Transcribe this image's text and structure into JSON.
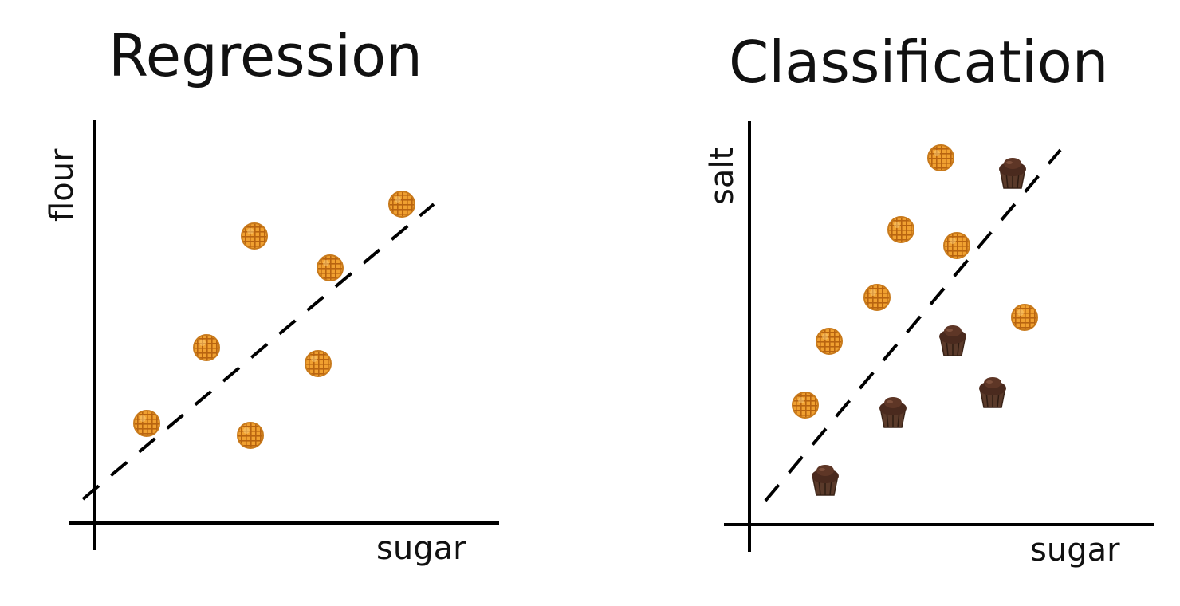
{
  "panels": [
    {
      "title": "Regression",
      "xlabel": "sugar",
      "ylabel": "flour"
    },
    {
      "title": "Classification",
      "xlabel": "sugar",
      "ylabel": "salt"
    }
  ],
  "chart_data": [
    {
      "type": "scatter",
      "title": "Regression",
      "xlabel": "sugar",
      "ylabel": "flour",
      "line_style": "dashed",
      "series": [
        {
          "marker": "waffle",
          "x": [
            0.13,
            0.28,
            0.39,
            0.4,
            0.56,
            0.59,
            0.77
          ],
          "y": [
            0.25,
            0.44,
            0.22,
            0.72,
            0.4,
            0.64,
            0.8
          ]
        }
      ],
      "line": {
        "x": [
          -0.03,
          0.85
        ],
        "y": [
          0.06,
          0.8
        ]
      }
    },
    {
      "type": "scatter",
      "title": "Classification",
      "xlabel": "sugar",
      "ylabel": "salt",
      "line_style": "dashed",
      "series": [
        {
          "marker": "waffle",
          "x": [
            0.14,
            0.2,
            0.32,
            0.38,
            0.48,
            0.52,
            0.69
          ],
          "y": [
            0.3,
            0.46,
            0.57,
            0.74,
            0.92,
            0.7,
            0.52
          ]
        },
        {
          "marker": "cupcake",
          "x": [
            0.19,
            0.36,
            0.51,
            0.61,
            0.66
          ],
          "y": [
            0.11,
            0.28,
            0.46,
            0.33,
            0.88
          ]
        }
      ],
      "line": {
        "x": [
          0.04,
          0.78
        ],
        "y": [
          0.06,
          0.94
        ]
      }
    }
  ]
}
